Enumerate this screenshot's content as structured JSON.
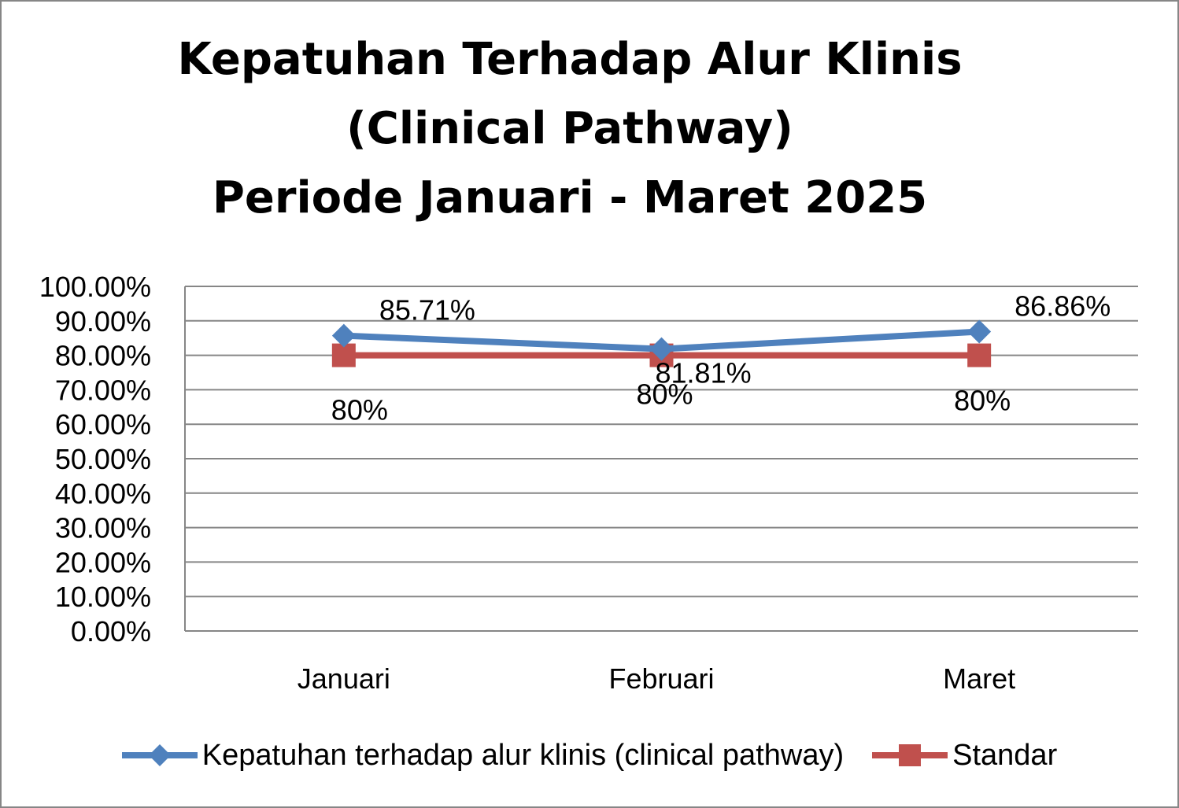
{
  "chart_data": {
    "type": "line",
    "title": "Kepatuhan Terhadap Alur Klinis (Clinical Pathway) Periode Januari - Maret 2025",
    "title_lines": [
      "Kepatuhan Terhadap Alur Klinis",
      "(Clinical Pathway)",
      "Periode Januari - Maret 2025"
    ],
    "categories": [
      "Januari",
      "Februari",
      "Maret"
    ],
    "ylim": [
      0,
      1
    ],
    "y_ticks": [
      0,
      0.1,
      0.2,
      0.3,
      0.4,
      0.5,
      0.6,
      0.7,
      0.8,
      0.9,
      1.0
    ],
    "y_tick_labels": [
      "0.00%",
      "10.00%",
      "20.00%",
      "30.00%",
      "40.00%",
      "50.00%",
      "60.00%",
      "70.00%",
      "80.00%",
      "90.00%",
      "100.00%"
    ],
    "grid": true,
    "legend_position": "bottom",
    "xlabel": "",
    "ylabel": "",
    "series": [
      {
        "name": "Kepatuhan terhadap alur klinis (clinical pathway)",
        "values": [
          0.8571,
          0.8181,
          0.8686
        ],
        "labels": [
          "85.71%",
          "81.81%",
          "86.86%"
        ],
        "color": "#4F81BD",
        "marker": "diamond",
        "label_position": "above-right"
      },
      {
        "name": "Standar",
        "values": [
          0.8,
          0.8,
          0.8
        ],
        "labels": [
          "80%",
          "80%",
          "80%"
        ],
        "color": "#C0504D",
        "marker": "square",
        "label_position": "below"
      }
    ]
  }
}
